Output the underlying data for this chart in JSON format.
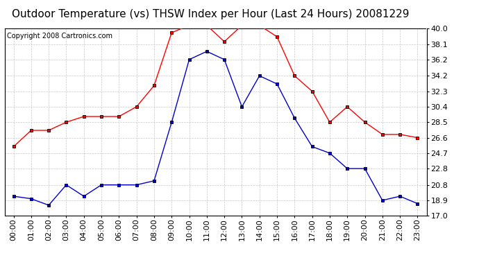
{
  "title": "Outdoor Temperature (vs) THSW Index per Hour (Last 24 Hours) 20081229",
  "copyright": "Copyright 2008 Cartronics.com",
  "hours": [
    "00:00",
    "01:00",
    "02:00",
    "03:00",
    "04:00",
    "05:00",
    "06:00",
    "07:00",
    "08:00",
    "09:00",
    "10:00",
    "11:00",
    "12:00",
    "13:00",
    "14:00",
    "15:00",
    "16:00",
    "17:00",
    "18:00",
    "19:00",
    "20:00",
    "21:00",
    "22:00",
    "23:00"
  ],
  "red_data": [
    25.5,
    27.5,
    27.5,
    28.5,
    29.2,
    29.2,
    29.2,
    30.4,
    33.0,
    39.5,
    40.4,
    40.4,
    38.4,
    40.4,
    40.4,
    39.0,
    34.2,
    32.3,
    28.5,
    30.4,
    28.5,
    27.0,
    27.0,
    26.6
  ],
  "blue_data": [
    19.4,
    19.1,
    18.3,
    20.8,
    19.4,
    20.8,
    20.8,
    20.8,
    21.3,
    28.5,
    36.2,
    37.2,
    36.2,
    30.4,
    34.2,
    33.2,
    29.0,
    25.5,
    24.7,
    22.8,
    22.8,
    18.9,
    19.4,
    18.5
  ],
  "ylim": [
    17.0,
    40.0
  ],
  "yticks": [
    17.0,
    18.9,
    20.8,
    22.8,
    24.7,
    26.6,
    28.5,
    30.4,
    32.3,
    34.2,
    36.2,
    38.1,
    40.0
  ],
  "red_color": "#ff0000",
  "blue_color": "#0000cc",
  "marker_color": "#000000",
  "bg_color": "#ffffff",
  "grid_color": "#c8c8c8",
  "title_fontsize": 11,
  "copyright_fontsize": 7,
  "tick_fontsize": 8
}
